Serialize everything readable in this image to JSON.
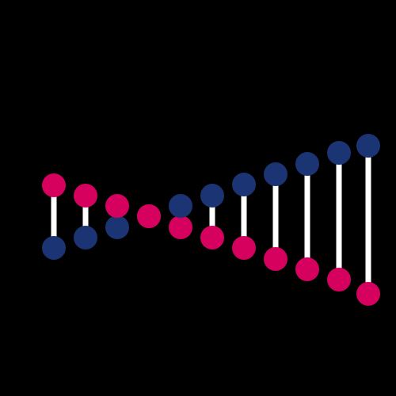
{
  "colors": {
    "background": "#000000",
    "connector": "#ffffff",
    "magenta": "#d6005f",
    "navy": "#1b3473"
  },
  "helix": {
    "pairs": [
      {
        "top": "magenta",
        "bottom": "navy"
      },
      {
        "top": "magenta",
        "bottom": "navy"
      },
      {
        "top": "magenta",
        "bottom": "navy"
      },
      {
        "top": "magenta",
        "bottom": "magenta"
      },
      {
        "top": "navy",
        "bottom": "magenta"
      },
      {
        "top": "navy",
        "bottom": "magenta"
      },
      {
        "top": "navy",
        "bottom": "magenta"
      },
      {
        "top": "navy",
        "bottom": "magenta"
      },
      {
        "top": "navy",
        "bottom": "magenta"
      },
      {
        "top": "navy",
        "bottom": "magenta"
      },
      {
        "top": "navy",
        "bottom": "magenta"
      }
    ]
  }
}
